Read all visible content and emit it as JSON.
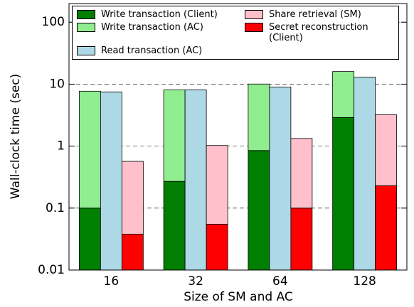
{
  "chart_data": {
    "type": "stacked-bar",
    "log_y": true,
    "grid": true,
    "legend": "upper left",
    "xlabel": "Size of SM and AC",
    "ylabel": "Wall-clock time (sec)",
    "categories": [
      "16",
      "32",
      "64",
      "128"
    ],
    "ylim": [
      0.01,
      200
    ],
    "yticks": [
      0.01,
      0.1,
      1,
      10,
      100
    ],
    "series": [
      {
        "name": "Write transaction (Client)",
        "color": "#007f00",
        "stack": 0,
        "values": [
          0.1,
          0.27,
          0.85,
          2.9
        ]
      },
      {
        "name": "Write transaction (AC)",
        "color": "#90ee90",
        "stack": 0,
        "values": [
          7.6,
          7.8,
          9.2,
          13.1
        ]
      },
      {
        "name": "Read transaction (AC)",
        "color": "#add8e6",
        "stack": 1,
        "values": [
          7.5,
          8.1,
          9,
          13
        ]
      },
      {
        "name": "Secret reconstruction (Client)",
        "color": "#ff0000",
        "stack": 2,
        "values": [
          0.038,
          0.055,
          0.1,
          0.23
        ]
      },
      {
        "name": "Share retrieval (SM)",
        "color": "#ffc0cb",
        "stack": 2,
        "values": [
          0.53,
          0.97,
          1.23,
          2.97
        ]
      }
    ]
  }
}
